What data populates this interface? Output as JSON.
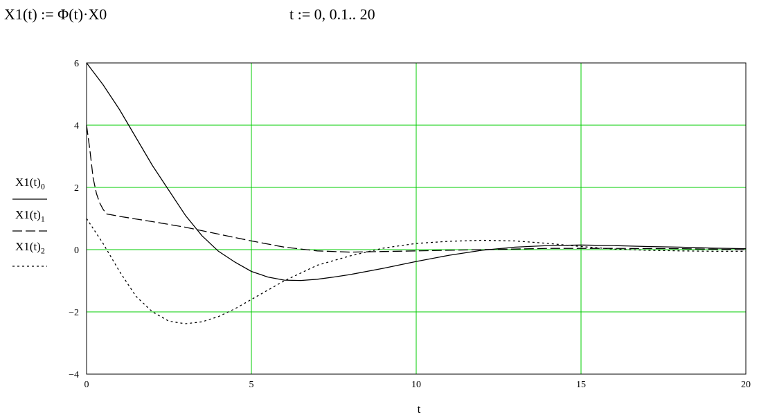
{
  "formulas": {
    "left": "X1(t) := Φ(t)·X0",
    "right": "t := 0, 0.1.. 20"
  },
  "colors": {
    "grid": "#00cc00",
    "frame": "#000000",
    "series": "#000000",
    "background": "#ffffff"
  },
  "chart_data": {
    "type": "line",
    "title": "",
    "xlabel": "t",
    "ylabel": "",
    "xlim": [
      0,
      20
    ],
    "ylim": [
      -4,
      6
    ],
    "xticks": [
      0,
      5,
      10,
      15,
      20
    ],
    "yticks": [
      -4,
      -2,
      0,
      2,
      4,
      6
    ],
    "xtick_labels": [
      "0",
      "5",
      "10",
      "15",
      "20"
    ],
    "ytick_labels": [
      "−4",
      "−2",
      "0",
      "2",
      "4",
      "6"
    ],
    "grid": true,
    "legend_position": "left",
    "series": [
      {
        "name": "X1(t)₀",
        "label_base": "X1(t)",
        "label_sub": "0",
        "style": "solid",
        "x": [
          0,
          0.5,
          1,
          1.5,
          2,
          2.5,
          3,
          3.5,
          4,
          4.5,
          5,
          5.5,
          6,
          6.5,
          7,
          7.5,
          8,
          9,
          10,
          11,
          12,
          13,
          14,
          15,
          16,
          17,
          18,
          19,
          20
        ],
        "y": [
          6,
          5.3,
          4.5,
          3.6,
          2.7,
          1.9,
          1.1,
          0.45,
          -0.05,
          -0.4,
          -0.7,
          -0.88,
          -0.98,
          -0.99,
          -0.95,
          -0.88,
          -0.8,
          -0.6,
          -0.38,
          -0.18,
          -0.02,
          0.08,
          0.13,
          0.15,
          0.13,
          0.1,
          0.08,
          0.05,
          0.03
        ]
      },
      {
        "name": "X1(t)₁",
        "label_base": "X1(t)",
        "label_sub": "1",
        "style": "dashed",
        "x": [
          0,
          0.1,
          0.2,
          0.3,
          0.4,
          0.5,
          0.6,
          1,
          2,
          3,
          4,
          5,
          6,
          6.5,
          7,
          8,
          9,
          10,
          12,
          14,
          16,
          18,
          20
        ],
        "y": [
          4.0,
          3.2,
          2.3,
          1.8,
          1.5,
          1.3,
          1.15,
          1.07,
          0.9,
          0.72,
          0.5,
          0.28,
          0.08,
          0.02,
          -0.04,
          -0.08,
          -0.06,
          -0.04,
          0.0,
          0.04,
          0.04,
          0.03,
          0.0
        ]
      },
      {
        "name": "X1(t)₂",
        "label_base": "X1(t)",
        "label_sub": "2",
        "style": "dotted",
        "x": [
          0,
          0.5,
          1,
          1.5,
          2,
          2.5,
          3,
          3.5,
          4,
          4.5,
          5,
          5.5,
          6,
          6.5,
          7,
          8,
          9,
          10,
          11,
          12,
          13,
          14,
          15,
          16,
          17,
          18,
          19,
          20
        ],
        "y": [
          1.0,
          0.2,
          -0.7,
          -1.5,
          -2.0,
          -2.3,
          -2.38,
          -2.32,
          -2.15,
          -1.9,
          -1.6,
          -1.3,
          -1.0,
          -0.75,
          -0.5,
          -0.2,
          0.05,
          0.2,
          0.27,
          0.3,
          0.28,
          0.2,
          0.1,
          0.02,
          -0.02,
          -0.04,
          -0.05,
          -0.05
        ]
      }
    ]
  }
}
